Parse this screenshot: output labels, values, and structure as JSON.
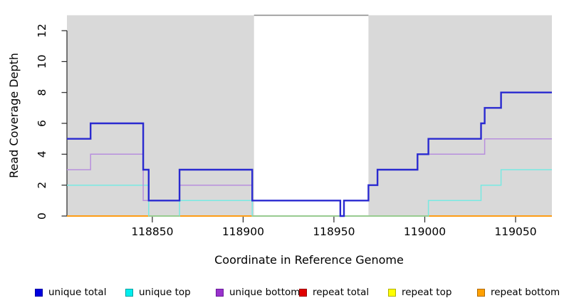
{
  "chart_data": {
    "type": "line",
    "subtype": "step-coverage-plot",
    "title": "",
    "xlabel": "Coordinate in Reference Genome",
    "ylabel": "Read Coverage Depth",
    "xlim": [
      118803,
      119070
    ],
    "ylim": [
      0,
      13
    ],
    "x_ticks": [
      "118850",
      "118900",
      "118950",
      "119000",
      "119050"
    ],
    "x_tick_values": [
      118850,
      118900,
      118950,
      119000,
      119050
    ],
    "y_ticks": [
      "0",
      "2",
      "4",
      "6",
      "8",
      "10",
      "12"
    ],
    "y_tick_values": [
      0,
      2,
      4,
      6,
      8,
      10,
      12
    ],
    "grid": false,
    "legend_position": "bottom",
    "series": [
      {
        "name": "unique total",
        "color": "#2a2ad0",
        "width": 2.4,
        "points": [
          [
            118803,
            5
          ],
          [
            118816,
            6
          ],
          [
            118845,
            3
          ],
          [
            118848,
            1
          ],
          [
            118865,
            3
          ],
          [
            118905,
            1
          ],
          [
            118953.5,
            0
          ],
          [
            118955.5,
            1
          ],
          [
            118969,
            2
          ],
          [
            118974,
            3
          ],
          [
            118996,
            4
          ],
          [
            119002,
            5
          ],
          [
            119031,
            6
          ],
          [
            119033,
            7
          ],
          [
            119042,
            8
          ],
          [
            119070,
            8
          ]
        ]
      },
      {
        "name": "unique top",
        "color": "#78e9e2",
        "width": 1.5,
        "points": [
          [
            118803,
            2
          ],
          [
            118848,
            0
          ],
          [
            118865,
            1
          ],
          [
            118905,
            0
          ],
          [
            119002,
            1
          ],
          [
            119031,
            2
          ],
          [
            119042,
            3
          ],
          [
            119070,
            3
          ]
        ]
      },
      {
        "name": "unique bottom",
        "color": "#b88fdd",
        "width": 1.5,
        "points": [
          [
            118803,
            3
          ],
          [
            118816,
            4
          ],
          [
            118845,
            1
          ],
          [
            118865,
            2
          ],
          [
            118905,
            1
          ],
          [
            118953.5,
            0
          ],
          [
            118955.5,
            1
          ],
          [
            118969,
            2
          ],
          [
            118974,
            3
          ],
          [
            118996,
            4
          ],
          [
            119033,
            5
          ],
          [
            119070,
            5
          ]
        ]
      },
      {
        "name": "repeat total",
        "color": "#cc2222",
        "width": 1.5,
        "points": [
          [
            118803,
            0
          ],
          [
            119070,
            0
          ]
        ]
      },
      {
        "name": "repeat top",
        "color": "#e8e832",
        "width": 1.5,
        "points": [
          [
            118803,
            0
          ],
          [
            119070,
            0
          ]
        ]
      },
      {
        "name": "repeat bottom",
        "color": "#ff9d15",
        "width": 2.0,
        "points": [
          [
            118803,
            0
          ],
          [
            119070,
            0
          ]
        ]
      }
    ],
    "draw_order": [
      "repeat total",
      "repeat top",
      "repeat bottom",
      "unique top",
      "__zero_overlays__",
      "unique bottom",
      "unique total"
    ],
    "shaded_regions": [
      [
        118803,
        118906
      ],
      [
        118969,
        119070
      ]
    ],
    "shade_color": "#d9d9d9",
    "gap_top_line": {
      "depth": 13,
      "from": 118906,
      "to": 118969,
      "color": "#8f8f8f"
    },
    "zero_overlay_segments": {
      "color": "#93cc93",
      "segments": [
        [
          118848,
          118865
        ],
        [
          118905,
          119002
        ]
      ]
    },
    "axis_color": "#262626"
  },
  "legend": {
    "items": [
      {
        "label": "unique total",
        "fill": "#0000e0",
        "border": "#0000a0"
      },
      {
        "label": "unique top",
        "fill": "#00eeee",
        "border": "#00a0a0"
      },
      {
        "label": "unique bottom",
        "fill": "#9932cc",
        "border": "#6a1b9a"
      },
      {
        "label": "repeat total",
        "fill": "#e00000",
        "border": "#990000"
      },
      {
        "label": "repeat top",
        "fill": "#ffff00",
        "border": "#b0b000"
      },
      {
        "label": "repeat bottom",
        "fill": "#ffa000",
        "border": "#b06a00"
      }
    ]
  }
}
